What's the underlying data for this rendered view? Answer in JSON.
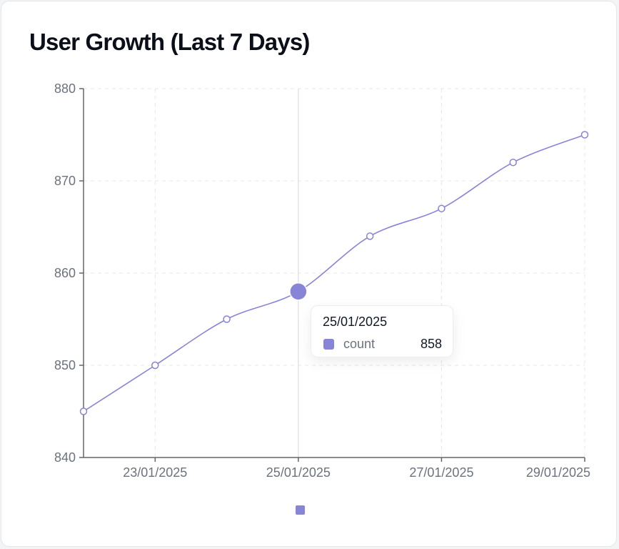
{
  "card": {
    "title": "User Growth (Last 7 Days)"
  },
  "colors": {
    "series": "#8884d8",
    "axis": "#666666",
    "grid": "#e5e7eb",
    "cursor": "#e5e7eb"
  },
  "tooltip": {
    "date": "25/01/2025",
    "series_name": "count",
    "value": "858"
  },
  "chart_data": {
    "type": "line",
    "title": "User Growth (Last 7 Days)",
    "xlabel": "",
    "ylabel": "",
    "x": [
      "22/01/2025",
      "23/01/2025",
      "24/01/2025",
      "25/01/2025",
      "26/01/2025",
      "27/01/2025",
      "28/01/2025",
      "29/01/2025"
    ],
    "x_tick_labels": [
      "23/01/2025",
      "25/01/2025",
      "27/01/2025",
      "29/01/2025"
    ],
    "series": [
      {
        "name": "count",
        "values": [
          845,
          850,
          855,
          858,
          864,
          867,
          872,
          875
        ]
      }
    ],
    "ylim": [
      840,
      880
    ],
    "y_ticks": [
      840,
      850,
      860,
      870,
      880
    ],
    "grid": true,
    "grid_style": "dashed",
    "legend": "bottom-center",
    "active_index": 3
  }
}
